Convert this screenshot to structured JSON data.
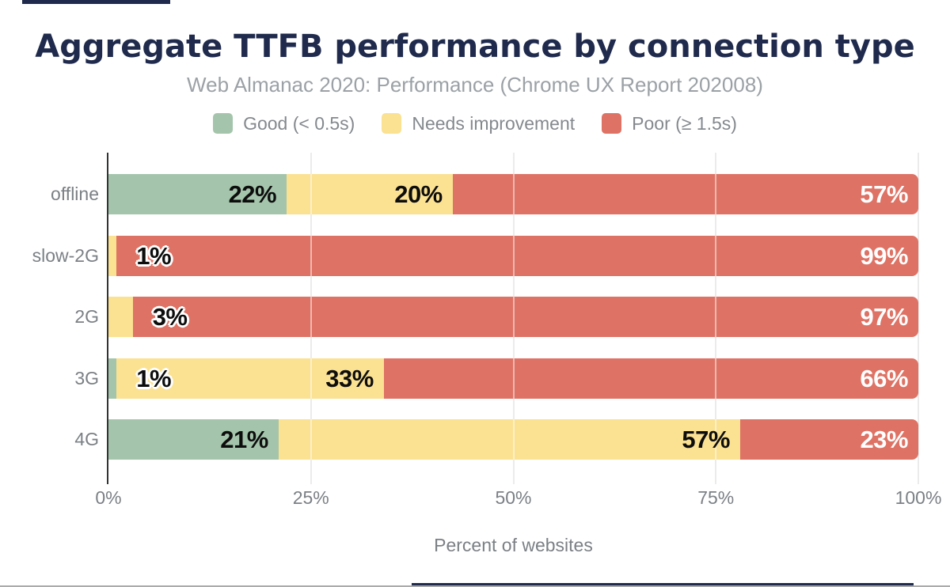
{
  "header": {
    "title": "Aggregate TTFB performance by connection type",
    "subtitle": "Web Almanac 2020: Performance (Chrome UX Report 202008)"
  },
  "legend": {
    "items": [
      {
        "key": "good",
        "label": "Good (< 0.5s)",
        "color": "#a4c5ac"
      },
      {
        "key": "needs_improvement",
        "label": "Needs improvement",
        "color": "#fbe192"
      },
      {
        "key": "poor",
        "label": "Poor (≥ 1.5s)",
        "color": "#de7264"
      }
    ]
  },
  "axes": {
    "categories": [
      "offline",
      "slow-2G",
      "2G",
      "3G",
      "4G"
    ],
    "x_ticks": [
      "0%",
      "25%",
      "50%",
      "75%",
      "100%"
    ],
    "x_label": "Percent of websites"
  },
  "colors": {
    "good": "#a4c5ac",
    "needs_improvement": "#fbe192",
    "poor": "#de7264",
    "title_navy": "#1f2a4c",
    "axis_line": "#333333",
    "gridline": "#ebebeb",
    "muted_text": "#7b8085",
    "subtitle_text": "#9ba1a6"
  },
  "chart_data": {
    "type": "bar",
    "orientation": "horizontal",
    "stacked": true,
    "title": "Aggregate TTFB performance by connection type",
    "subtitle": "Web Almanac 2020: Performance (Chrome UX Report 202008)",
    "categories": [
      "offline",
      "slow-2G",
      "2G",
      "3G",
      "4G"
    ],
    "series": [
      {
        "name": "Good (< 0.5s)",
        "values": [
          22,
          0,
          0,
          1,
          21
        ]
      },
      {
        "name": "Needs improvement",
        "values": [
          20,
          1,
          3,
          33,
          57
        ]
      },
      {
        "name": "Poor (≥ 1.5s)",
        "values": [
          57,
          99,
          97,
          66,
          23
        ]
      }
    ],
    "xlabel": "Percent of websites",
    "xlim": [
      0,
      100
    ],
    "x_tick_labels": [
      "0%",
      "25%",
      "50%",
      "75%",
      "100%"
    ],
    "legend_position": "top",
    "grid": "vertical"
  },
  "rows": [
    {
      "category": "offline",
      "segments": [
        {
          "series": "good",
          "width": 22,
          "label": "22%",
          "label_style": "dark"
        },
        {
          "series": "needs_improvement",
          "width": 20.5,
          "label": "20%",
          "label_style": "dark"
        },
        {
          "series": "poor",
          "width": 57.5,
          "label": "57%",
          "label_style": "light"
        }
      ]
    },
    {
      "category": "slow-2G",
      "segments": [
        {
          "series": "needs_improvement",
          "width": 1,
          "label": "1%",
          "label_style": "outlined"
        },
        {
          "series": "poor",
          "width": 99,
          "label": "99%",
          "label_style": "light"
        }
      ]
    },
    {
      "category": "2G",
      "segments": [
        {
          "series": "needs_improvement",
          "width": 3,
          "label": "3%",
          "label_style": "outlined"
        },
        {
          "series": "poor",
          "width": 97,
          "label": "97%",
          "label_style": "light"
        }
      ]
    },
    {
      "category": "3G",
      "segments": [
        {
          "series": "good",
          "width": 1,
          "label": "1%",
          "label_style": "outlined"
        },
        {
          "series": "needs_improvement",
          "width": 33,
          "label": "33%",
          "label_style": "dark"
        },
        {
          "series": "poor",
          "width": 66,
          "label": "66%",
          "label_style": "light"
        }
      ]
    },
    {
      "category": "4G",
      "segments": [
        {
          "series": "good",
          "width": 21,
          "label": "21%",
          "label_style": "dark"
        },
        {
          "series": "needs_improvement",
          "width": 57,
          "label": "57%",
          "label_style": "dark"
        },
        {
          "series": "poor",
          "width": 22,
          "label": "23%",
          "label_style": "light"
        }
      ]
    }
  ],
  "layout_fractions": {
    "gridlines": [
      0.25,
      0.5,
      0.75,
      1.0
    ],
    "bar_overlays": [
      0.25,
      0.5,
      0.75
    ]
  }
}
